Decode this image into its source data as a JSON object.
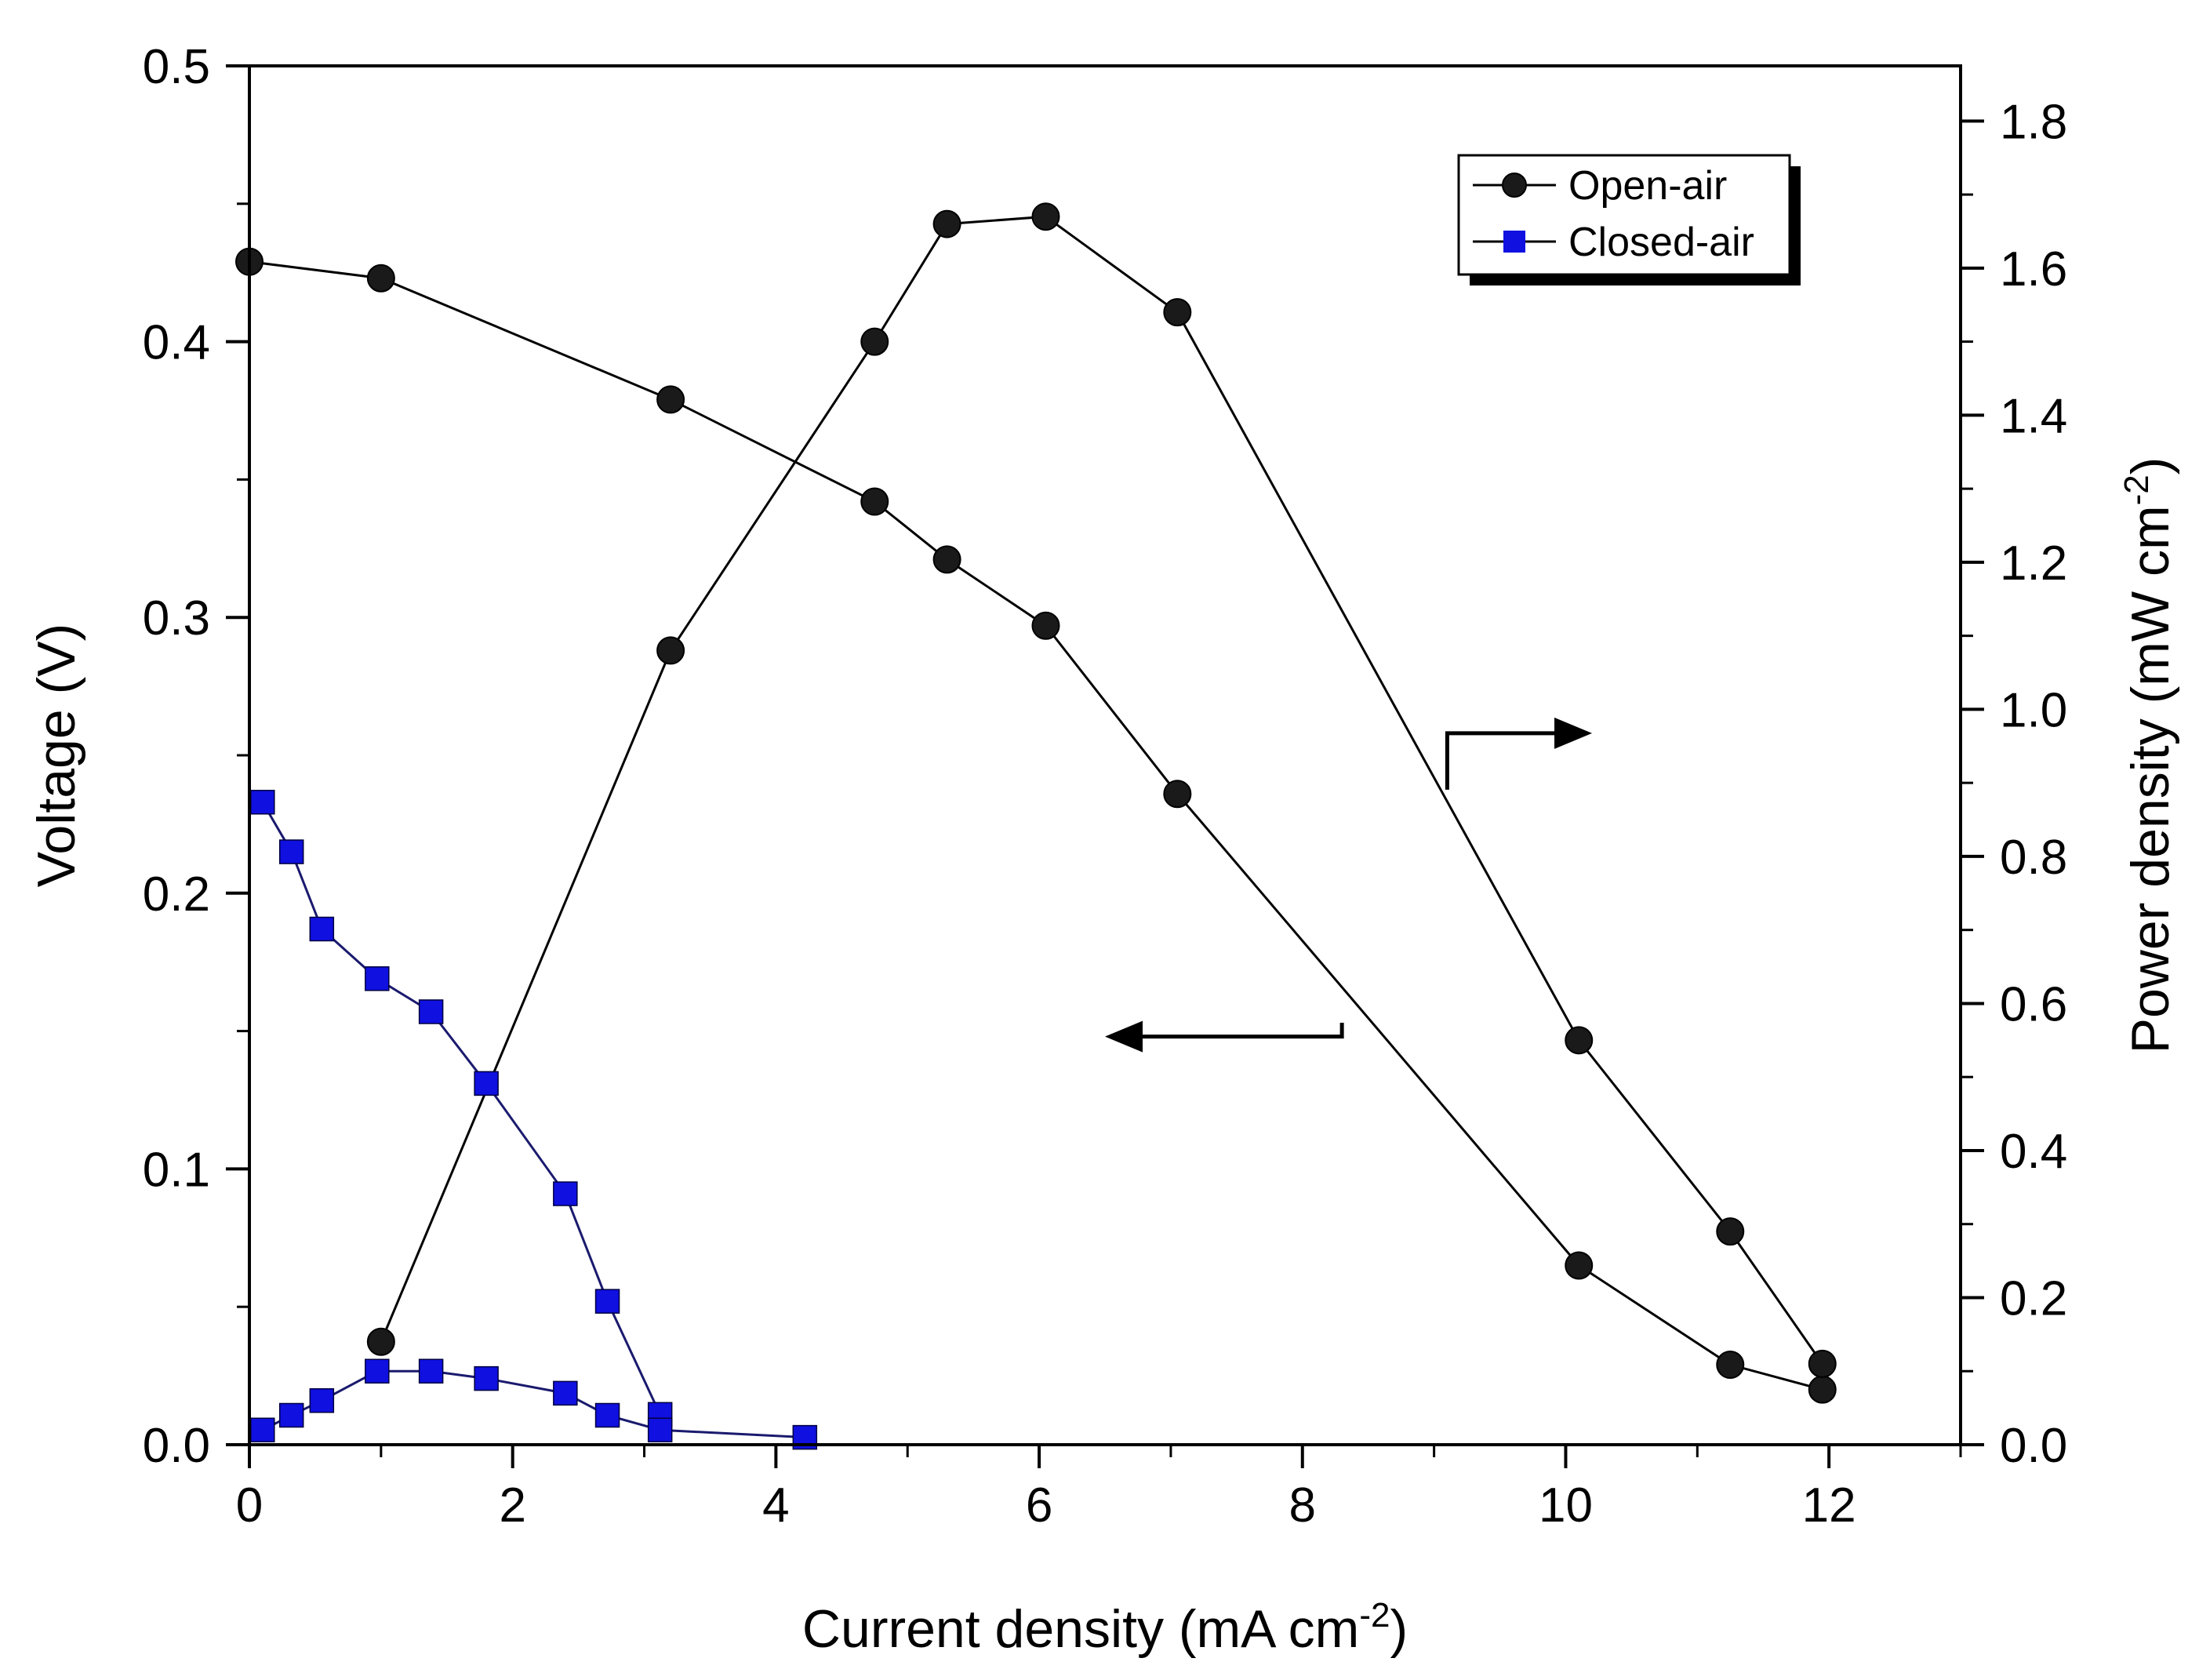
{
  "chart_data": {
    "type": "line",
    "title": "",
    "xlabel": "Current density (mA cm",
    "xlabel_sup": "-2",
    "xlabel_end": ")",
    "ylabel": "Voltage (V)",
    "y2label": "Power density (mW cm",
    "y2label_sup": "-2",
    "y2label_end": ")",
    "xlim": [
      0,
      13
    ],
    "ylim": [
      0,
      0.5
    ],
    "y2lim": [
      0,
      1.875
    ],
    "xticks": [
      0,
      2,
      4,
      6,
      8,
      10,
      12
    ],
    "xtick_labels": [
      "0",
      "2",
      "4",
      "6",
      "8",
      "10",
      "12"
    ],
    "yticks": [
      0.0,
      0.1,
      0.2,
      0.3,
      0.4,
      0.5
    ],
    "ytick_labels": [
      "0.0",
      "0.1",
      "0.2",
      "0.3",
      "0.4",
      "0.5"
    ],
    "y2ticks": [
      0.0,
      0.2,
      0.4,
      0.6,
      0.8,
      1.0,
      1.2,
      1.4,
      1.6,
      1.8
    ],
    "y2tick_labels": [
      "0.0",
      "0.2",
      "0.4",
      "0.6",
      "0.8",
      "1.0",
      "1.2",
      "1.4",
      "1.6",
      "1.8"
    ],
    "grid": false,
    "legend_position": "top-right",
    "series": [
      {
        "name": "Open-air",
        "kind": "voltage",
        "axis": "left",
        "marker": "circle",
        "color": "#1a1a1a",
        "x": [
          0,
          1.0,
          3.2,
          4.75,
          5.3,
          6.05,
          7.05,
          10.1,
          11.25,
          11.95
        ],
        "y": [
          0.429,
          0.423,
          0.379,
          0.342,
          0.321,
          0.297,
          0.236,
          0.065,
          0.029,
          0.02
        ]
      },
      {
        "name": "Open-air",
        "kind": "power",
        "axis": "right",
        "marker": "circle",
        "color": "#1a1a1a",
        "x": [
          1.0,
          3.2,
          4.75,
          5.3,
          6.05,
          7.05,
          10.1,
          11.25,
          11.95
        ],
        "y": [
          0.14,
          1.08,
          1.5,
          1.66,
          1.67,
          1.54,
          0.55,
          0.29,
          0.11
        ]
      },
      {
        "name": "Closed-air",
        "kind": "voltage",
        "axis": "left",
        "marker": "square",
        "color": "#1010e0",
        "x": [
          0.1,
          0.32,
          0.55,
          0.97,
          1.38,
          1.8,
          2.4,
          2.72,
          3.12
        ],
        "y": [
          0.233,
          0.215,
          0.187,
          0.169,
          0.157,
          0.131,
          0.091,
          0.052,
          0.011
        ]
      },
      {
        "name": "Closed-air",
        "kind": "power",
        "axis": "right",
        "marker": "square",
        "color": "#1010e0",
        "x": [
          0.1,
          0.32,
          0.55,
          0.97,
          1.38,
          1.8,
          2.4,
          2.72,
          3.12,
          4.22
        ],
        "y": [
          0.02,
          0.04,
          0.06,
          0.1,
          0.1,
          0.09,
          0.07,
          0.04,
          0.02,
          0.01
        ]
      }
    ],
    "legend": [
      {
        "label": "Open-air",
        "marker": "circle",
        "color": "#1a1a1a"
      },
      {
        "label": "Closed-air",
        "marker": "square",
        "color": "#1010e0"
      }
    ],
    "annotations": [
      {
        "type": "arrow",
        "points_to": "right-axis",
        "anchor_x": 9.1,
        "anchor_y": 0.258,
        "tip_x": 10.2,
        "tip_y": 0.258
      },
      {
        "type": "arrow",
        "points_to": "left-axis",
        "anchor_x": 8.3,
        "anchor_y": 0.153,
        "tip_x": 6.5,
        "tip_y": 0.148
      }
    ]
  }
}
